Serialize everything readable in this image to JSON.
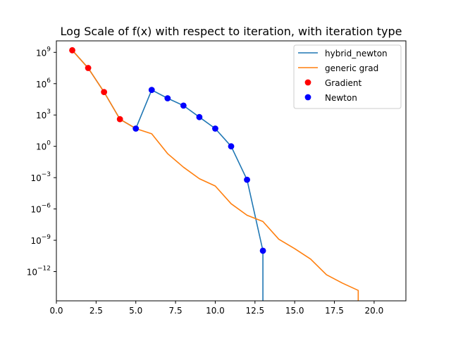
{
  "chart_data": {
    "type": "line",
    "title": "Log Scale of f(x) with respect to iteration, with iteration type",
    "xlabel": "",
    "ylabel": "",
    "xlim": [
      0,
      22
    ],
    "ylog": true,
    "ylim_log10": [
      -14.8,
      10.1
    ],
    "grid": false,
    "legend_position": "top-right",
    "x_ticks": [
      {
        "value": 0,
        "label": "0.0"
      },
      {
        "value": 2.5,
        "label": "2.5"
      },
      {
        "value": 5,
        "label": "5.0"
      },
      {
        "value": 7.5,
        "label": "7.5"
      },
      {
        "value": 10,
        "label": "10.0"
      },
      {
        "value": 12.5,
        "label": "12.5"
      },
      {
        "value": 15,
        "label": "15.0"
      },
      {
        "value": 17.5,
        "label": "17.5"
      },
      {
        "value": 20,
        "label": "20.0"
      }
    ],
    "y_ticks": [
      {
        "exp": 9,
        "base": "10",
        "power": "9"
      },
      {
        "exp": 6,
        "base": "10",
        "power": "6"
      },
      {
        "exp": 3,
        "base": "10",
        "power": "3"
      },
      {
        "exp": 0,
        "base": "10",
        "power": "0"
      },
      {
        "exp": -3,
        "base": "10",
        "power": "−3"
      },
      {
        "exp": -6,
        "base": "10",
        "power": "−6"
      },
      {
        "exp": -9,
        "base": "10",
        "power": "−9"
      },
      {
        "exp": -12,
        "base": "10",
        "power": "−12"
      }
    ],
    "series": [
      {
        "name": "hybrid_newton",
        "kind": "line",
        "color": "#1f77b4",
        "x": [
          1,
          2,
          3,
          4,
          5,
          6,
          7,
          8,
          9,
          10,
          11,
          12,
          13,
          13
        ],
        "log10_y": [
          9.2,
          7.5,
          5.2,
          2.6,
          1.7,
          5.4,
          4.6,
          3.9,
          2.8,
          1.7,
          0.0,
          -3.2,
          -10.0,
          -16.0
        ]
      },
      {
        "name": "generic grad",
        "kind": "line",
        "color": "#ff7f0e",
        "x": [
          1,
          2,
          3,
          4,
          5,
          6,
          7,
          8,
          9,
          10,
          11,
          12,
          13,
          14,
          15,
          16,
          17,
          18,
          19,
          19
        ],
        "log10_y": [
          9.2,
          7.5,
          5.2,
          2.6,
          1.7,
          1.2,
          -0.7,
          -2.0,
          -3.1,
          -3.8,
          -5.5,
          -6.6,
          -7.2,
          -8.9,
          -9.8,
          -10.8,
          -12.3,
          -13.1,
          -13.8,
          -16.0
        ]
      },
      {
        "name": "Gradient",
        "kind": "scatter",
        "color": "#ff0000",
        "x": [
          1,
          2,
          3,
          4
        ],
        "log10_y": [
          9.2,
          7.5,
          5.2,
          2.6
        ]
      },
      {
        "name": "Newton",
        "kind": "scatter",
        "color": "#0000ff",
        "x": [
          5,
          6,
          7,
          8,
          9,
          10,
          11,
          12,
          13
        ],
        "log10_y": [
          1.7,
          5.4,
          4.6,
          3.9,
          2.8,
          1.7,
          0.0,
          -3.2,
          -10.0
        ]
      }
    ]
  }
}
